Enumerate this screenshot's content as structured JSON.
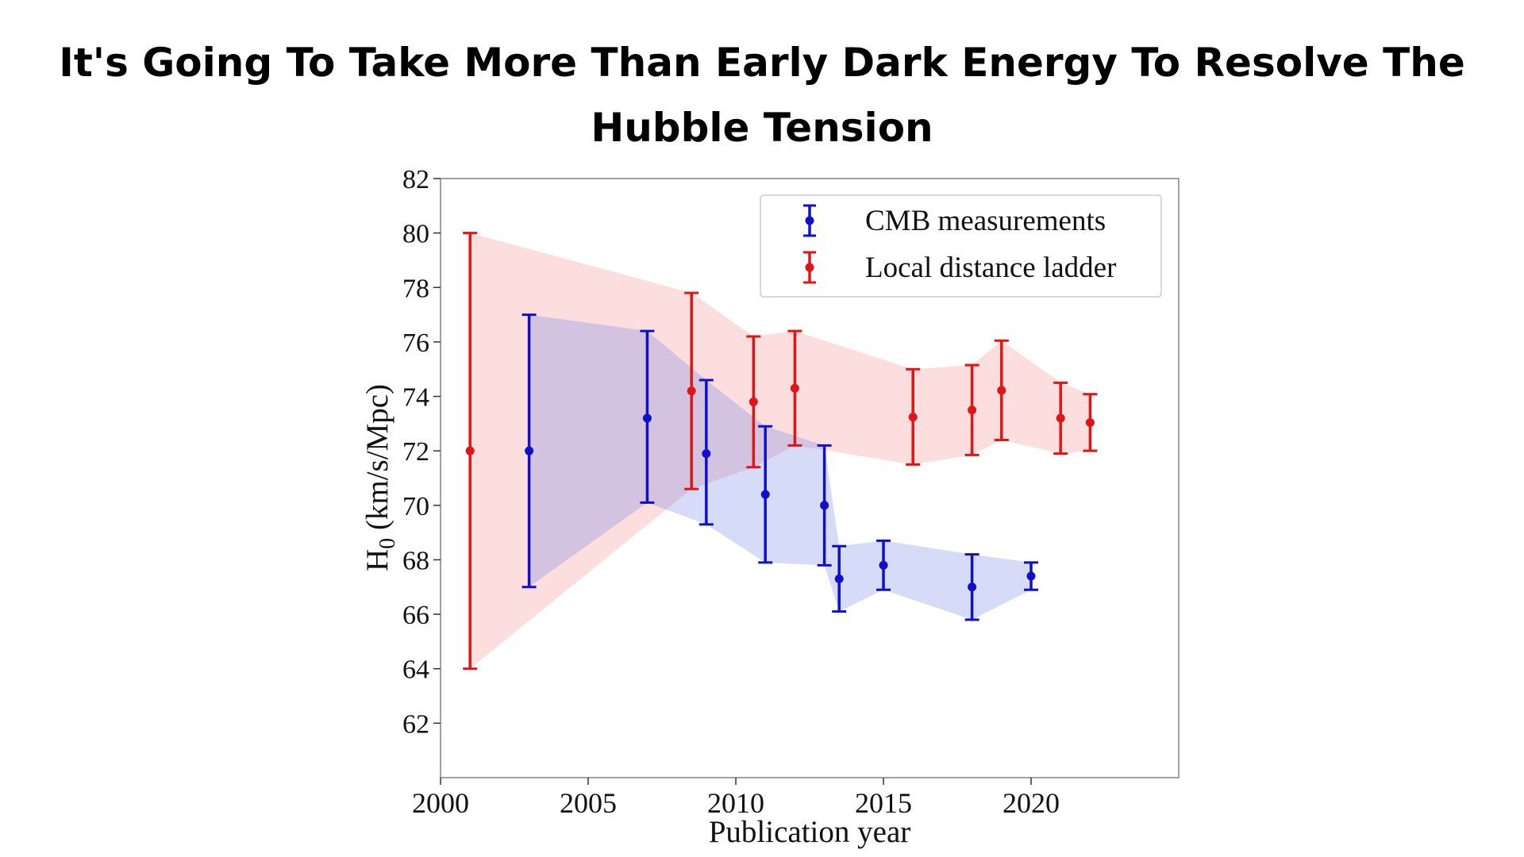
{
  "page": {
    "headline": "It's Going To Take More Than Early Dark Energy To Resolve The Hubble Tension"
  },
  "chart_data": {
    "type": "scatter",
    "title": "",
    "xlabel": "Publication year",
    "ylabel_main": "H",
    "ylabel_sub": "0",
    "ylabel_units": " (km/s/Mpc)",
    "xlim": [
      2000,
      2025
    ],
    "ylim": [
      60,
      82
    ],
    "xticks": [
      2000,
      2005,
      2010,
      2015,
      2020
    ],
    "yticks": [
      62,
      64,
      66,
      68,
      70,
      72,
      74,
      76,
      78,
      80,
      82
    ],
    "grid": false,
    "legend_position": "top-right",
    "series": [
      {
        "name": "CMB measurements",
        "color": "#1010cc",
        "band_color": "#6d7fe6",
        "points": [
          {
            "x": 2003,
            "y": 72.0,
            "lo": 67.0,
            "hi": 77.0
          },
          {
            "x": 2007,
            "y": 73.2,
            "lo": 70.1,
            "hi": 76.4
          },
          {
            "x": 2009,
            "y": 71.9,
            "lo": 69.3,
            "hi": 74.6
          },
          {
            "x": 2011,
            "y": 70.4,
            "lo": 67.9,
            "hi": 72.9
          },
          {
            "x": 2013,
            "y": 70.0,
            "lo": 67.8,
            "hi": 72.2
          },
          {
            "x": 2013.5,
            "y": 67.3,
            "lo": 66.1,
            "hi": 68.5
          },
          {
            "x": 2015,
            "y": 67.8,
            "lo": 66.9,
            "hi": 68.7
          },
          {
            "x": 2018,
            "y": 67.0,
            "lo": 65.8,
            "hi": 68.2
          },
          {
            "x": 2020,
            "y": 67.4,
            "lo": 66.9,
            "hi": 67.9
          }
        ]
      },
      {
        "name": "Local distance ladder",
        "color": "#e01515",
        "band_color": "#f7a0a0",
        "points": [
          {
            "x": 2001,
            "y": 72.0,
            "lo": 64.0,
            "hi": 80.0
          },
          {
            "x": 2008.5,
            "y": 74.2,
            "lo": 70.6,
            "hi": 77.8
          },
          {
            "x": 2010.6,
            "y": 73.8,
            "lo": 71.4,
            "hi": 76.2
          },
          {
            "x": 2012,
            "y": 74.3,
            "lo": 72.2,
            "hi": 76.4
          },
          {
            "x": 2016,
            "y": 73.24,
            "lo": 71.5,
            "hi": 75.0
          },
          {
            "x": 2018,
            "y": 73.5,
            "lo": 71.85,
            "hi": 75.15
          },
          {
            "x": 2019,
            "y": 74.22,
            "lo": 72.4,
            "hi": 76.05
          },
          {
            "x": 2021,
            "y": 73.2,
            "lo": 71.9,
            "hi": 74.5
          },
          {
            "x": 2022,
            "y": 73.04,
            "lo": 72.0,
            "hi": 74.08
          }
        ]
      }
    ]
  }
}
